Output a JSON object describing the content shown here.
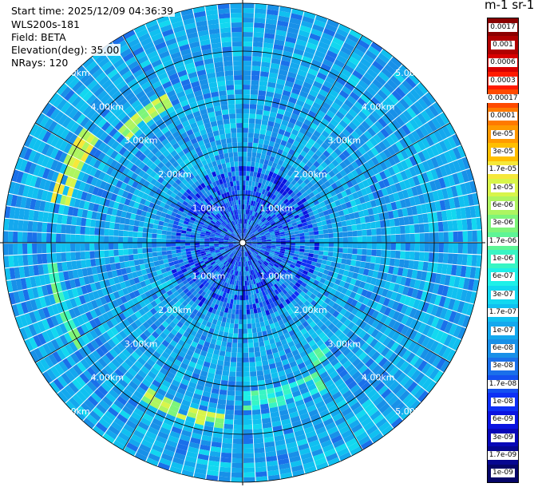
{
  "info": {
    "start_time": "Start time: 2025/12/09 04:36:39",
    "instrument": "WLS200s-181",
    "field": "Field: BETA",
    "elevation": "Elevation(deg): 35.00",
    "nrays": "NRays: 120"
  },
  "colorbar": {
    "title": "m-1 sr-1",
    "labels": [
      "0.0017",
      "0.001",
      "0.0006",
      "0.0003",
      "0.00017",
      "0.0001",
      "6e-05",
      "3e-05",
      "1.7e-05",
      "1e-05",
      "6e-06",
      "3e-06",
      "1.7e-06",
      "1e-06",
      "6e-07",
      "3e-07",
      "1.7e-07",
      "1e-07",
      "6e-08",
      "3e-08",
      "1.7e-08",
      "1e-08",
      "6e-09",
      "3e-09",
      "1.7e-09",
      "1e-09"
    ],
    "colors": [
      "#8b0000",
      "#b00000",
      "#d80000",
      "#ff1a00",
      "#ff4a00",
      "#ff7a00",
      "#ff9a00",
      "#ffbf00",
      "#f5e83a",
      "#d8f54a",
      "#aef560",
      "#7ef57a",
      "#5ef596",
      "#38f5c4",
      "#1ef0e8",
      "#12d8f0",
      "#10c0f0",
      "#14a8ee",
      "#1890e8",
      "#1a70ea",
      "#1450f0",
      "#0e30f5",
      "#0a14e0",
      "#0808b8",
      "#060690",
      "#050568"
    ]
  },
  "chart_data": {
    "type": "ppi",
    "field": "BETA",
    "units": "m-1 sr-1",
    "nrays": 120,
    "elevation_deg": 35.0,
    "range_rings_km": [
      1,
      2,
      3,
      4,
      5
    ],
    "ring_labels": [
      "1.00km",
      "2.00km",
      "3.00km",
      "4.00km",
      "5.00km"
    ],
    "max_range_km": 5.0,
    "colorbar_min": 1e-09,
    "colorbar_max": 0.0017,
    "colorbar_scale": "log"
  }
}
